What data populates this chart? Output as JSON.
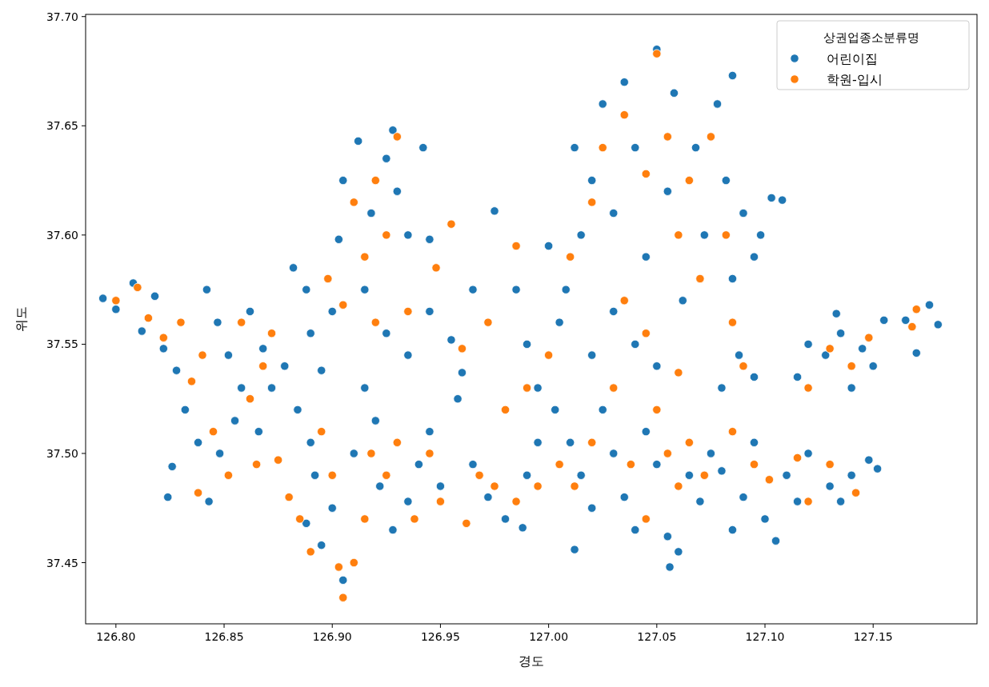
{
  "chart_data": {
    "type": "scatter",
    "xlabel": "경도",
    "ylabel": "위도",
    "legend_title": "상권업종소분류명",
    "legend": "top right",
    "marker": "circle",
    "xlim": [
      126.786,
      127.198
    ],
    "ylim": [
      37.422,
      37.701
    ],
    "xticks": [
      {
        "value": 126.8,
        "label": "126.80"
      },
      {
        "value": 126.85,
        "label": "126.85"
      },
      {
        "value": 126.9,
        "label": "126.90"
      },
      {
        "value": 126.95,
        "label": "126.95"
      },
      {
        "value": 127.0,
        "label": "127.00"
      },
      {
        "value": 127.05,
        "label": "127.05"
      },
      {
        "value": 127.1,
        "label": "127.10"
      },
      {
        "value": 127.15,
        "label": "127.15"
      }
    ],
    "yticks": [
      {
        "value": 37.45,
        "label": "37.45"
      },
      {
        "value": 37.5,
        "label": "37.50"
      },
      {
        "value": 37.55,
        "label": "37.55"
      },
      {
        "value": 37.6,
        "label": "37.60"
      },
      {
        "value": 37.65,
        "label": "37.65"
      },
      {
        "value": 37.7,
        "label": "37.70"
      }
    ],
    "series": [
      {
        "name": "어린이집",
        "color": "#1f77b4",
        "x": [
          126.794,
          126.8,
          126.808,
          126.812,
          126.818,
          126.822,
          126.828,
          126.832,
          126.838,
          126.826,
          126.824,
          126.843,
          126.842,
          126.847,
          126.852,
          126.858,
          126.855,
          126.848,
          126.862,
          126.868,
          126.872,
          126.866,
          126.878,
          126.882,
          126.888,
          126.884,
          126.89,
          126.895,
          126.892,
          126.888,
          126.895,
          126.9,
          126.905,
          126.91,
          126.915,
          126.92,
          126.922,
          126.928,
          126.935,
          126.94,
          126.945,
          126.95,
          126.905,
          126.912,
          126.918,
          126.925,
          126.93,
          126.935,
          126.942,
          126.945,
          126.928,
          126.903,
          126.89,
          126.9,
          126.915,
          126.925,
          126.935,
          126.945,
          126.955,
          126.96,
          126.965,
          126.958,
          126.965,
          126.972,
          126.98,
          126.988,
          126.99,
          126.995,
          126.975,
          126.985,
          126.99,
          126.995,
          127.0,
          127.005,
          127.003,
          127.01,
          127.015,
          127.012,
          127.02,
          127.025,
          127.03,
          127.035,
          127.04,
          127.045,
          127.05,
          127.055,
          127.056,
          127.06,
          127.065,
          127.07,
          127.075,
          127.08,
          127.085,
          127.09,
          127.095,
          127.1,
          127.105,
          127.11,
          127.115,
          127.12,
          127.13,
          127.135,
          127.14,
          127.148,
          127.152,
          127.115,
          127.12,
          127.128,
          127.135,
          127.133,
          127.14,
          127.145,
          127.15,
          127.155,
          127.165,
          127.17,
          127.176,
          127.18,
          127.008,
          127.015,
          127.012,
          127.02,
          127.025,
          127.03,
          127.035,
          127.04,
          127.045,
          127.05,
          127.055,
          127.058,
          127.062,
          127.068,
          127.072,
          127.078,
          127.082,
          127.085,
          127.09,
          127.095,
          127.098,
          127.103,
          127.108,
          127.085,
          127.088,
          127.08,
          127.095,
          127.04,
          127.05,
          127.03,
          127.02
        ],
        "values": [
          37.571,
          37.566,
          37.578,
          37.556,
          37.572,
          37.548,
          37.538,
          37.52,
          37.505,
          37.494,
          37.48,
          37.478,
          37.575,
          37.56,
          37.545,
          37.53,
          37.515,
          37.5,
          37.565,
          37.548,
          37.53,
          37.51,
          37.54,
          37.585,
          37.575,
          37.52,
          37.505,
          37.538,
          37.49,
          37.468,
          37.458,
          37.475,
          37.442,
          37.5,
          37.53,
          37.515,
          37.485,
          37.465,
          37.478,
          37.495,
          37.51,
          37.485,
          37.625,
          37.643,
          37.61,
          37.635,
          37.62,
          37.6,
          37.64,
          37.598,
          37.648,
          37.598,
          37.555,
          37.565,
          37.575,
          37.555,
          37.545,
          37.565,
          37.552,
          37.537,
          37.575,
          37.525,
          37.495,
          37.48,
          37.47,
          37.466,
          37.49,
          37.505,
          37.611,
          37.575,
          37.55,
          37.53,
          37.595,
          37.56,
          37.52,
          37.505,
          37.49,
          37.456,
          37.475,
          37.52,
          37.5,
          37.48,
          37.465,
          37.51,
          37.495,
          37.462,
          37.448,
          37.455,
          37.49,
          37.478,
          37.5,
          37.492,
          37.465,
          37.48,
          37.505,
          37.47,
          37.46,
          37.49,
          37.478,
          37.5,
          37.485,
          37.478,
          37.49,
          37.497,
          37.493,
          37.535,
          37.55,
          37.545,
          37.555,
          37.564,
          37.53,
          37.548,
          37.54,
          37.561,
          37.561,
          37.546,
          37.568,
          37.559,
          37.575,
          37.6,
          37.64,
          37.625,
          37.66,
          37.61,
          37.67,
          37.64,
          37.59,
          37.685,
          37.62,
          37.665,
          37.57,
          37.64,
          37.6,
          37.66,
          37.625,
          37.58,
          37.61,
          37.59,
          37.6,
          37.617,
          37.616,
          37.673,
          37.545,
          37.53,
          37.535,
          37.55,
          37.54,
          37.565,
          37.545
        ]
      },
      {
        "name": "학원-입시",
        "color": "#ff7f0e",
        "x": [
          126.8,
          126.81,
          126.815,
          126.822,
          126.83,
          126.835,
          126.84,
          126.845,
          126.838,
          126.852,
          126.858,
          126.862,
          126.868,
          126.872,
          126.865,
          126.875,
          126.88,
          126.885,
          126.89,
          126.895,
          126.9,
          126.903,
          126.905,
          126.91,
          126.915,
          126.918,
          126.925,
          126.93,
          126.938,
          126.945,
          126.95,
          126.962,
          126.968,
          126.975,
          126.98,
          126.985,
          126.995,
          126.91,
          126.92,
          126.93,
          126.925,
          126.915,
          126.898,
          126.905,
          126.92,
          126.935,
          126.948,
          126.955,
          126.96,
          126.972,
          126.985,
          126.99,
          127.005,
          127.012,
          127.02,
          127.03,
          127.038,
          127.045,
          127.05,
          127.055,
          127.06,
          127.065,
          127.072,
          127.085,
          127.095,
          127.102,
          127.115,
          127.12,
          127.13,
          127.142,
          127.12,
          127.13,
          127.14,
          127.148,
          127.17,
          127.168,
          127.01,
          127.02,
          127.025,
          127.035,
          127.045,
          127.05,
          127.055,
          127.06,
          127.065,
          127.07,
          127.075,
          127.082,
          127.085,
          127.09,
          127.035,
          127.045,
          127.06,
          127.0
        ],
        "values": [
          37.57,
          37.576,
          37.562,
          37.553,
          37.56,
          37.533,
          37.545,
          37.51,
          37.482,
          37.49,
          37.56,
          37.525,
          37.54,
          37.555,
          37.495,
          37.497,
          37.48,
          37.47,
          37.455,
          37.51,
          37.49,
          37.448,
          37.434,
          37.45,
          37.47,
          37.5,
          37.49,
          37.505,
          37.47,
          37.5,
          37.478,
          37.468,
          37.49,
          37.485,
          37.52,
          37.478,
          37.485,
          37.615,
          37.625,
          37.645,
          37.6,
          37.59,
          37.58,
          37.568,
          37.56,
          37.565,
          37.585,
          37.605,
          37.548,
          37.56,
          37.595,
          37.53,
          37.495,
          37.485,
          37.505,
          37.53,
          37.495,
          37.47,
          37.52,
          37.5,
          37.485,
          37.505,
          37.49,
          37.51,
          37.495,
          37.488,
          37.498,
          37.478,
          37.495,
          37.482,
          37.53,
          37.548,
          37.54,
          37.553,
          37.566,
          37.558,
          37.59,
          37.615,
          37.64,
          37.655,
          37.628,
          37.683,
          37.645,
          37.6,
          37.625,
          37.58,
          37.645,
          37.6,
          37.56,
          37.54,
          37.57,
          37.555,
          37.537,
          37.545
        ]
      }
    ]
  }
}
